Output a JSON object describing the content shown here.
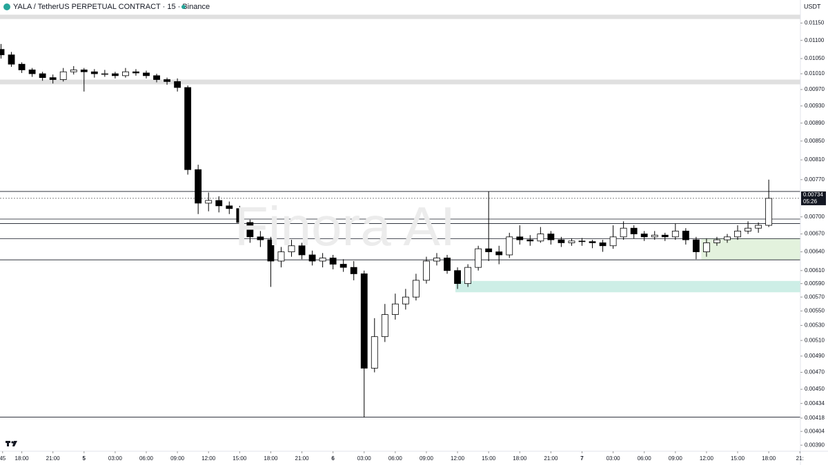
{
  "chart_data": {
    "type": "candlestick",
    "title": "YALA / TetherUS PERPETUAL CONTRACT · 15 · Binance",
    "currency": "USDT",
    "watermark": "Finora AI",
    "log_scale": true,
    "xlim": [
      -8.1,
      69.05
    ],
    "ylim": [
      0.00384,
      0.0122
    ],
    "xticks": [
      {
        "value": -7.85,
        "label": "45"
      },
      {
        "value": -6,
        "label": "18:00"
      },
      {
        "value": -3,
        "label": "21:00"
      },
      {
        "value": 0,
        "label": "5"
      },
      {
        "value": 3,
        "label": "03:00"
      },
      {
        "value": 6,
        "label": "06:00"
      },
      {
        "value": 9,
        "label": "09:00"
      },
      {
        "value": 12,
        "label": "12:00"
      },
      {
        "value": 15,
        "label": "15:00"
      },
      {
        "value": 18,
        "label": "18:00"
      },
      {
        "value": 21,
        "label": "21:00"
      },
      {
        "value": 24,
        "label": "6"
      },
      {
        "value": 27,
        "label": "03:00"
      },
      {
        "value": 30,
        "label": "06:00"
      },
      {
        "value": 33,
        "label": "09:00"
      },
      {
        "value": 36,
        "label": "12:00"
      },
      {
        "value": 39,
        "label": "15:00"
      },
      {
        "value": 42,
        "label": "18:00"
      },
      {
        "value": 45,
        "label": "21:00"
      },
      {
        "value": 48,
        "label": "7"
      },
      {
        "value": 51,
        "label": "03:00"
      },
      {
        "value": 54,
        "label": "06:00"
      },
      {
        "value": 57,
        "label": "09:00"
      },
      {
        "value": 60,
        "label": "12:00"
      },
      {
        "value": 63,
        "label": "15:00"
      },
      {
        "value": 66,
        "label": "18:00"
      },
      {
        "value": 69,
        "label": "21:"
      }
    ],
    "yticks": [
      {
        "value": 0.0115,
        "label": "0.01150"
      },
      {
        "value": 0.011,
        "label": "0.01100"
      },
      {
        "value": 0.0105,
        "label": "0.01050"
      },
      {
        "value": 0.0101,
        "label": "0.01010"
      },
      {
        "value": 0.0097,
        "label": "0.00970"
      },
      {
        "value": 0.0093,
        "label": "0.00930"
      },
      {
        "value": 0.0089,
        "label": "0.00890"
      },
      {
        "value": 0.0085,
        "label": "0.00850"
      },
      {
        "value": 0.0081,
        "label": "0.00810"
      },
      {
        "value": 0.0077,
        "label": "0.00770"
      },
      {
        "value": 0.007,
        "label": "0.00700"
      },
      {
        "value": 0.0067,
        "label": "0.00670"
      },
      {
        "value": 0.0064,
        "label": "0.00640"
      },
      {
        "value": 0.0061,
        "label": "0.00610"
      },
      {
        "value": 0.0059,
        "label": "0.00590"
      },
      {
        "value": 0.0057,
        "label": "0.00570"
      },
      {
        "value": 0.0055,
        "label": "0.00550"
      },
      {
        "value": 0.0053,
        "label": "0.00530"
      },
      {
        "value": 0.0051,
        "label": "0.00510"
      },
      {
        "value": 0.0049,
        "label": "0.00490"
      },
      {
        "value": 0.0047,
        "label": "0.00470"
      },
      {
        "value": 0.0045,
        "label": "0.00450"
      },
      {
        "value": 0.00434,
        "label": "0.00434"
      },
      {
        "value": 0.00418,
        "label": "0.00418"
      },
      {
        "value": 0.00404,
        "label": "0.00404"
      },
      {
        "value": 0.0039,
        "label": "0.00390"
      }
    ],
    "up_color": "#ffffff",
    "down_color": "#000000",
    "wick_color": "#000000",
    "x": [
      -8,
      -7,
      -6,
      -5,
      -4,
      -3,
      -2,
      -1,
      0,
      1,
      2,
      3,
      4,
      5,
      6,
      7,
      8,
      9,
      10,
      11,
      12,
      13,
      14,
      15,
      16,
      17,
      18,
      19,
      20,
      21,
      22,
      23,
      24,
      25,
      26,
      27,
      28,
      29,
      30,
      31,
      32,
      33,
      34,
      35,
      36,
      37,
      38,
      39,
      40,
      41,
      42,
      43,
      44,
      45,
      46,
      47,
      48,
      49,
      50,
      51,
      52,
      53,
      54,
      55,
      56,
      57,
      58,
      59,
      60,
      61,
      62,
      63,
      64,
      65,
      66
    ],
    "open": [
      0.01075,
      0.0106,
      0.01035,
      0.0102,
      0.0101,
      0.01,
      0.00995,
      0.01015,
      0.0102,
      0.01015,
      0.0101,
      0.0101,
      0.01005,
      0.01015,
      0.01012,
      0.01005,
      0.00995,
      0.0099,
      0.00975,
      0.0079,
      0.00725,
      0.0073,
      0.0072,
      0.00715,
      0.0069,
      0.00665,
      0.0066,
      0.00625,
      0.0064,
      0.0065,
      0.00635,
      0.00625,
      0.0063,
      0.0062,
      0.00615,
      0.00605,
      0.00475,
      0.00515,
      0.00545,
      0.0056,
      0.0057,
      0.00595,
      0.00625,
      0.0063,
      0.0061,
      0.0059,
      0.00615,
      0.00645,
      0.0064,
      0.00635,
      0.00665,
      0.0066,
      0.00658,
      0.0067,
      0.0066,
      0.00655,
      0.00658,
      0.00657,
      0.00655,
      0.0065,
      0.00665,
      0.0068,
      0.0067,
      0.00665,
      0.00668,
      0.00665,
      0.00675,
      0.0066,
      0.0064,
      0.00655,
      0.0066,
      0.00665,
      0.00675,
      0.0068,
      0.00685
    ],
    "high": [
      0.0109,
      0.01068,
      0.0104,
      0.01025,
      0.01015,
      0.01008,
      0.01025,
      0.0103,
      0.01025,
      0.01022,
      0.0102,
      0.01015,
      0.01025,
      0.01022,
      0.01018,
      0.0101,
      0.01,
      0.00998,
      0.0098,
      0.008,
      0.00745,
      0.00738,
      0.00728,
      0.0072,
      0.00695,
      0.00675,
      0.00665,
      0.00648,
      0.0066,
      0.00655,
      0.00642,
      0.00638,
      0.00635,
      0.00628,
      0.00625,
      0.0061,
      0.0054,
      0.0056,
      0.00575,
      0.00582,
      0.00605,
      0.00632,
      0.00638,
      0.00635,
      0.00615,
      0.0062,
      0.0065,
      0.00747,
      0.0065,
      0.00672,
      0.00685,
      0.00668,
      0.00682,
      0.00675,
      0.00665,
      0.00662,
      0.00663,
      0.0066,
      0.0066,
      0.00685,
      0.00692,
      0.00685,
      0.00675,
      0.00675,
      0.00672,
      0.00688,
      0.0068,
      0.00665,
      0.00662,
      0.00665,
      0.0067,
      0.00685,
      0.00692,
      0.0069,
      0.0077
    ],
    "low": [
      0.0105,
      0.01028,
      0.01012,
      0.01002,
      0.00992,
      0.00985,
      0.0099,
      0.01008,
      0.00965,
      0.01,
      0.01002,
      0.00998,
      0.01,
      0.01005,
      0.00998,
      0.00988,
      0.00982,
      0.00965,
      0.0078,
      0.00705,
      0.0071,
      0.00708,
      0.00705,
      0.0068,
      0.00655,
      0.00648,
      0.00585,
      0.00615,
      0.00632,
      0.00628,
      0.00618,
      0.00615,
      0.00612,
      0.00608,
      0.00595,
      0.00419,
      0.0047,
      0.00508,
      0.00538,
      0.00552,
      0.00565,
      0.0059,
      0.00618,
      0.00605,
      0.00582,
      0.00585,
      0.0061,
      0.00625,
      0.0062,
      0.0063,
      0.00652,
      0.0065,
      0.00655,
      0.00652,
      0.00648,
      0.0065,
      0.0065,
      0.00646,
      0.0064,
      0.00645,
      0.0066,
      0.00662,
      0.00658,
      0.0066,
      0.00658,
      0.0066,
      0.00652,
      0.00628,
      0.00632,
      0.0065,
      0.00655,
      0.0066,
      0.0067,
      0.00672,
      0.00682
    ],
    "close": [
      0.0106,
      0.01035,
      0.0102,
      0.0101,
      0.01,
      0.00995,
      0.01015,
      0.0102,
      0.01015,
      0.0101,
      0.0101,
      0.01005,
      0.01015,
      0.01012,
      0.01005,
      0.00995,
      0.0099,
      0.00975,
      0.0079,
      0.00725,
      0.0073,
      0.0072,
      0.00715,
      0.0069,
      0.00665,
      0.0066,
      0.00625,
      0.0064,
      0.0065,
      0.00635,
      0.00625,
      0.0063,
      0.0062,
      0.00615,
      0.00605,
      0.00475,
      0.00515,
      0.00545,
      0.0056,
      0.0057,
      0.00595,
      0.00625,
      0.0063,
      0.0061,
      0.0059,
      0.00615,
      0.00645,
      0.0064,
      0.00635,
      0.00665,
      0.0066,
      0.00658,
      0.0067,
      0.0066,
      0.00655,
      0.00658,
      0.00657,
      0.00655,
      0.0065,
      0.00665,
      0.0068,
      0.0067,
      0.00665,
      0.00668,
      0.00665,
      0.00675,
      0.0066,
      0.0064,
      0.00655,
      0.0066,
      0.00665,
      0.00675,
      0.0068,
      0.00685,
      0.00734
    ],
    "levels": [
      0.00747,
      0.00696,
      0.00688,
      0.00662,
      0.00627,
      0.00419
    ],
    "zones": [
      {
        "low": 0.00983,
        "high": 0.00995,
        "x_start": -8.1,
        "color": "#e0e0e0"
      },
      {
        "low": 0.01162,
        "high": 0.01175,
        "x_start": -8.1,
        "color": "#e0e0e0"
      },
      {
        "low": 0.00627,
        "high": 0.00662,
        "x_start": 59.5,
        "color": "#e3f2dd"
      },
      {
        "low": 0.00577,
        "high": 0.00594,
        "x_start": 35.8,
        "color": "#cdeee6"
      }
    ],
    "last_price": 0.00734,
    "countdown": "05:26"
  }
}
